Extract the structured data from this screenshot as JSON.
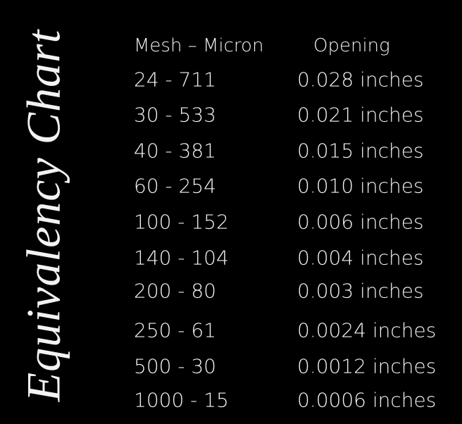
{
  "title": "Equivalency Chart",
  "table": {
    "headers": [
      "Mesh – Micron",
      "Opening"
    ],
    "rows": [
      [
        "24 - 711",
        "0.028 inches"
      ],
      [
        "30 - 533",
        "0.021 inches"
      ],
      [
        "40 - 381",
        "0.015 inches"
      ],
      [
        "60 - 254",
        "0.010 inches"
      ],
      [
        "100 - 152",
        "0.006 inches"
      ],
      [
        "140 - 104",
        "0.004 inches"
      ],
      [
        "200 - 80",
        "0.003 inches"
      ],
      [
        "250 - 61",
        "0.0024 inches"
      ],
      [
        "500 - 30",
        "0.0012 inches"
      ],
      [
        "1000 - 15",
        "0.0006 inches"
      ]
    ]
  }
}
